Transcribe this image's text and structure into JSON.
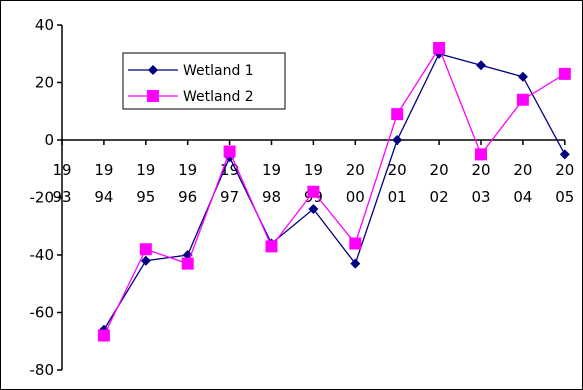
{
  "chart_data": {
    "type": "line",
    "title": "",
    "xlabel": "",
    "ylabel": "",
    "categories": [
      [
        "19",
        "93"
      ],
      [
        "19",
        "94"
      ],
      [
        "19",
        "95"
      ],
      [
        "19",
        "96"
      ],
      [
        "19",
        "97"
      ],
      [
        "19",
        "98"
      ],
      [
        "19",
        "99"
      ],
      [
        "20",
        "00"
      ],
      [
        "20",
        "01"
      ],
      [
        "20",
        "02"
      ],
      [
        "20",
        "03"
      ],
      [
        "20",
        "04"
      ],
      [
        "20",
        "05"
      ]
    ],
    "yticks": [
      "40",
      "20",
      "0",
      "-20",
      "-40",
      "-60",
      "-80"
    ],
    "ylim": [
      -80,
      40
    ],
    "grid": false,
    "legend_position": "top-left",
    "series": [
      {
        "name": "Wetland 1",
        "color": "#000080",
        "marker": "diamond",
        "values": [
          null,
          -66,
          -42,
          -40,
          -6,
          -36,
          -24,
          -43,
          0,
          30,
          26,
          22,
          -5
        ]
      },
      {
        "name": "Wetland 2",
        "color": "#ff00ff",
        "marker": "square",
        "values": [
          null,
          -68,
          -38,
          -43,
          -4,
          -37,
          -18,
          -36,
          9,
          32,
          -5,
          14,
          23
        ]
      }
    ]
  }
}
